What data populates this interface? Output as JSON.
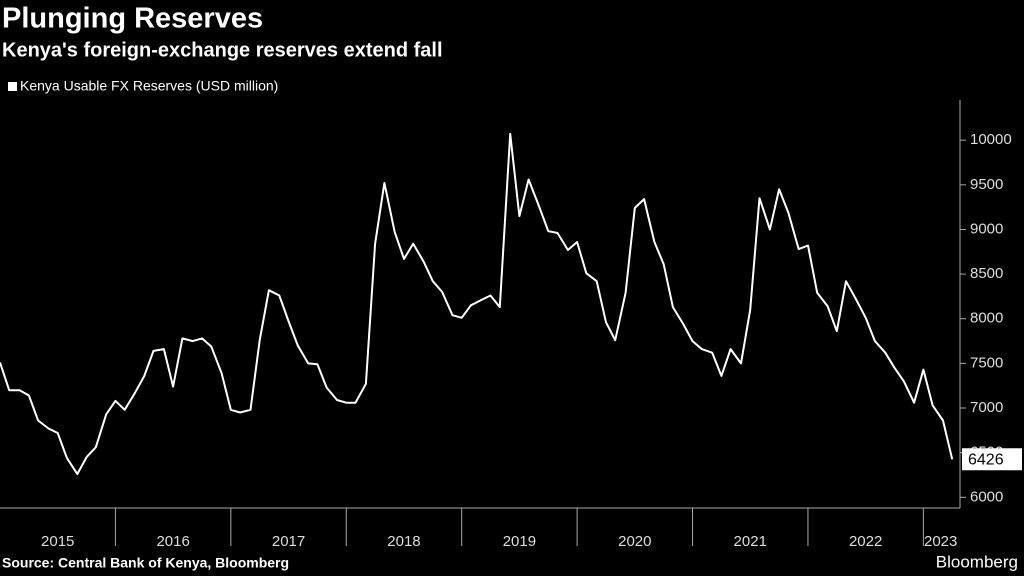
{
  "chart_data": {
    "type": "line",
    "title": "Plunging Reserves",
    "subtitle": "Kenya's foreign-exchange reserves extend fall",
    "source": "Source: Central Bank of Kenya, Bloomberg",
    "brand": "Bloomberg",
    "x": [
      2015,
      2015.08,
      2015.17,
      2015.25,
      2015.33,
      2015.42,
      2015.5,
      2015.58,
      2015.67,
      2015.75,
      2015.83,
      2015.92,
      2016,
      2016.08,
      2016.17,
      2016.25,
      2016.33,
      2016.42,
      2016.5,
      2016.58,
      2016.67,
      2016.75,
      2016.83,
      2016.92,
      2017,
      2017.08,
      2017.17,
      2017.25,
      2017.33,
      2017.42,
      2017.5,
      2017.58,
      2017.67,
      2017.75,
      2017.83,
      2017.92,
      2018,
      2018.08,
      2018.17,
      2018.25,
      2018.33,
      2018.42,
      2018.5,
      2018.58,
      2018.67,
      2018.75,
      2018.83,
      2018.92,
      2019,
      2019.08,
      2019.17,
      2019.25,
      2019.33,
      2019.42,
      2019.5,
      2019.58,
      2019.67,
      2019.75,
      2019.83,
      2019.92,
      2020,
      2020.08,
      2020.17,
      2020.25,
      2020.33,
      2020.42,
      2020.5,
      2020.58,
      2020.67,
      2020.75,
      2020.83,
      2020.92,
      2021,
      2021.08,
      2021.17,
      2021.25,
      2021.33,
      2021.42,
      2021.5,
      2021.58,
      2021.67,
      2021.75,
      2021.83,
      2021.92,
      2022,
      2022.08,
      2022.17,
      2022.25,
      2022.33,
      2022.42,
      2022.5,
      2022.58,
      2022.67,
      2022.75,
      2022.83,
      2022.92,
      2023,
      2023.08,
      2023.17,
      2023.25
    ],
    "series": [
      {
        "name": "Kenya Usable FX Reserves (USD million)",
        "color": "#ffffff",
        "values": [
          7510,
          7200,
          7200,
          7140,
          6860,
          6770,
          6720,
          6440,
          6260,
          6450,
          6560,
          6930,
          7080,
          6980,
          7170,
          7360,
          7640,
          7660,
          7240,
          7780,
          7750,
          7780,
          7690,
          7390,
          6980,
          6950,
          6980,
          7760,
          8320,
          8260,
          7970,
          7700,
          7500,
          7490,
          7230,
          7090,
          7060,
          7060,
          7270,
          8840,
          9520,
          8970,
          8670,
          8840,
          8640,
          8420,
          8300,
          8040,
          8010,
          8150,
          8210,
          8260,
          8130,
          10070,
          9150,
          9560,
          9260,
          8980,
          8960,
          8770,
          8860,
          8510,
          8420,
          7960,
          7760,
          8290,
          9240,
          9340,
          8860,
          8610,
          8130,
          7940,
          7750,
          7660,
          7620,
          7360,
          7660,
          7500,
          8100,
          9350,
          9000,
          9450,
          9190,
          8780,
          8820,
          8290,
          8140,
          7860,
          8420,
          8210,
          8010,
          7750,
          7620,
          7450,
          7300,
          7060,
          7430,
          7030,
          6860,
          6426
        ]
      }
    ],
    "xlim": [
      2015,
      2023.3
    ],
    "xticks": [
      {
        "value": 2015.5,
        "label": "2015"
      },
      {
        "value": 2016.5,
        "label": "2016"
      },
      {
        "value": 2017.5,
        "label": "2017"
      },
      {
        "value": 2018.5,
        "label": "2018"
      },
      {
        "value": 2019.5,
        "label": "2019"
      },
      {
        "value": 2020.5,
        "label": "2020"
      },
      {
        "value": 2021.5,
        "label": "2021"
      },
      {
        "value": 2022.5,
        "label": "2022"
      },
      {
        "value": 2023.15,
        "label": "2023"
      }
    ],
    "ylim": [
      5880,
      10450
    ],
    "yticks": [
      6000,
      6500,
      7000,
      7500,
      8000,
      8500,
      9000,
      9500,
      10000
    ],
    "grid": false
  }
}
